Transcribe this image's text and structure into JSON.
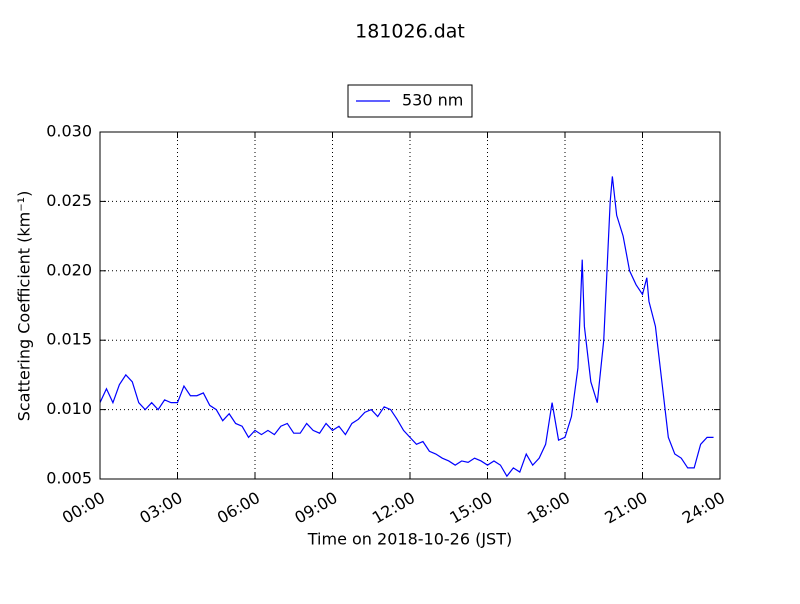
{
  "chart_data": {
    "type": "line",
    "title": "181026.dat",
    "xlabel": "Time on 2018-10-26 (JST)",
    "ylabel": "Scattering Coefficient (km⁻¹)",
    "x": [
      "00:00",
      "00:15",
      "00:30",
      "00:45",
      "01:00",
      "01:15",
      "01:30",
      "01:45",
      "02:00",
      "02:15",
      "02:30",
      "02:45",
      "03:00",
      "03:15",
      "03:30",
      "03:45",
      "04:00",
      "04:15",
      "04:30",
      "04:45",
      "05:00",
      "05:15",
      "05:30",
      "05:45",
      "06:00",
      "06:15",
      "06:30",
      "06:45",
      "07:00",
      "07:15",
      "07:30",
      "07:45",
      "08:00",
      "08:15",
      "08:30",
      "08:45",
      "09:00",
      "09:15",
      "09:30",
      "09:45",
      "10:00",
      "10:15",
      "10:30",
      "10:45",
      "11:00",
      "11:15",
      "11:30",
      "11:45",
      "12:00",
      "12:15",
      "12:30",
      "12:45",
      "13:00",
      "13:15",
      "13:30",
      "13:45",
      "14:00",
      "14:15",
      "14:30",
      "14:45",
      "15:00",
      "15:15",
      "15:30",
      "15:45",
      "16:00",
      "16:15",
      "16:30",
      "16:45",
      "17:00",
      "17:15",
      "17:30",
      "17:45",
      "18:00",
      "18:15",
      "18:30",
      "18:40",
      "18:45",
      "19:00",
      "19:15",
      "19:30",
      "19:45",
      "19:50",
      "20:00",
      "20:15",
      "20:30",
      "20:45",
      "21:00",
      "21:10",
      "21:15",
      "21:30",
      "21:45",
      "22:00",
      "22:15",
      "22:30",
      "22:45",
      "23:00",
      "23:15",
      "23:30",
      "23:45"
    ],
    "series": [
      {
        "name": "530 nm",
        "color": "#0000ff",
        "values": [
          0.0105,
          0.0115,
          0.0105,
          0.0118,
          0.0125,
          0.012,
          0.0105,
          0.01,
          0.0105,
          0.01,
          0.0107,
          0.0105,
          0.0105,
          0.0117,
          0.011,
          0.011,
          0.0112,
          0.0103,
          0.01,
          0.0092,
          0.0097,
          0.009,
          0.0088,
          0.008,
          0.0085,
          0.0082,
          0.0085,
          0.0082,
          0.0088,
          0.009,
          0.0083,
          0.0083,
          0.009,
          0.0085,
          0.0083,
          0.009,
          0.0085,
          0.0088,
          0.0082,
          0.009,
          0.0093,
          0.0098,
          0.01,
          0.0095,
          0.0102,
          0.01,
          0.0093,
          0.0085,
          0.008,
          0.0075,
          0.0077,
          0.007,
          0.0068,
          0.0065,
          0.0063,
          0.006,
          0.0063,
          0.0062,
          0.0065,
          0.0063,
          0.006,
          0.0063,
          0.006,
          0.0052,
          0.0058,
          0.0055,
          0.0068,
          0.006,
          0.0065,
          0.0075,
          0.0105,
          0.0078,
          0.008,
          0.0095,
          0.013,
          0.0208,
          0.016,
          0.012,
          0.0105,
          0.015,
          0.025,
          0.0268,
          0.024,
          0.0225,
          0.02,
          0.019,
          0.0183,
          0.0195,
          0.0178,
          0.016,
          0.012,
          0.008,
          0.0068,
          0.0065,
          0.0058,
          0.0058,
          0.0075,
          0.008,
          0.008
        ]
      }
    ],
    "xlim": [
      "00:00",
      "24:00"
    ],
    "xticks": [
      "00:00",
      "03:00",
      "06:00",
      "09:00",
      "12:00",
      "15:00",
      "18:00",
      "21:00",
      "24:00"
    ],
    "ylim": [
      0.005,
      0.03
    ],
    "yticks": [
      0.005,
      {
        "value": 0.01,
        "label": "0.010"
      },
      0.015,
      {
        "value": 0.02,
        "label": "0.020"
      },
      0.025,
      {
        "value": 0.03,
        "label": "0.030"
      }
    ],
    "grid": true,
    "legend": "top"
  }
}
